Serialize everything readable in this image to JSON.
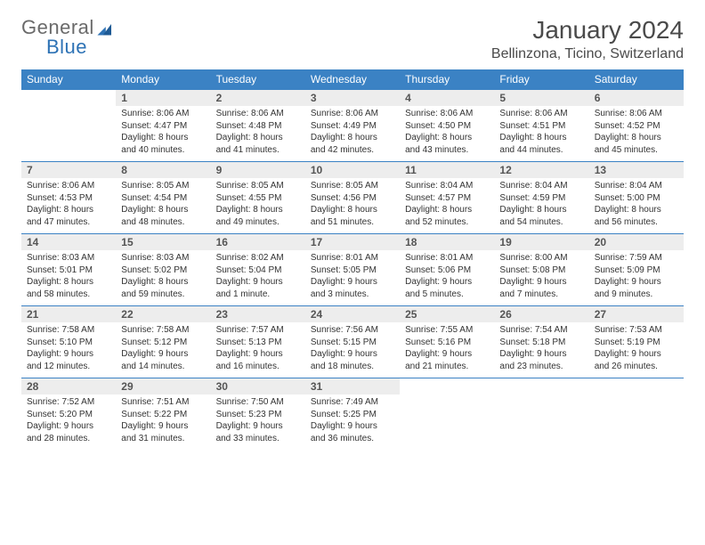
{
  "logo": {
    "general": "General",
    "blue": "Blue"
  },
  "title": "January 2024",
  "location": "Bellinzona, Ticino, Switzerland",
  "colors": {
    "header_bg": "#3b82c4",
    "header_text": "#ffffff",
    "daynum_bg": "#ededed",
    "border": "#3b82c4",
    "logo_gray": "#6a6a6a",
    "logo_blue": "#2d72b5"
  },
  "weekdays": [
    "Sunday",
    "Monday",
    "Tuesday",
    "Wednesday",
    "Thursday",
    "Friday",
    "Saturday"
  ],
  "weeks": [
    [
      null,
      {
        "n": "1",
        "sr": "Sunrise: 8:06 AM",
        "ss": "Sunset: 4:47 PM",
        "d1": "Daylight: 8 hours",
        "d2": "and 40 minutes."
      },
      {
        "n": "2",
        "sr": "Sunrise: 8:06 AM",
        "ss": "Sunset: 4:48 PM",
        "d1": "Daylight: 8 hours",
        "d2": "and 41 minutes."
      },
      {
        "n": "3",
        "sr": "Sunrise: 8:06 AM",
        "ss": "Sunset: 4:49 PM",
        "d1": "Daylight: 8 hours",
        "d2": "and 42 minutes."
      },
      {
        "n": "4",
        "sr": "Sunrise: 8:06 AM",
        "ss": "Sunset: 4:50 PM",
        "d1": "Daylight: 8 hours",
        "d2": "and 43 minutes."
      },
      {
        "n": "5",
        "sr": "Sunrise: 8:06 AM",
        "ss": "Sunset: 4:51 PM",
        "d1": "Daylight: 8 hours",
        "d2": "and 44 minutes."
      },
      {
        "n": "6",
        "sr": "Sunrise: 8:06 AM",
        "ss": "Sunset: 4:52 PM",
        "d1": "Daylight: 8 hours",
        "d2": "and 45 minutes."
      }
    ],
    [
      {
        "n": "7",
        "sr": "Sunrise: 8:06 AM",
        "ss": "Sunset: 4:53 PM",
        "d1": "Daylight: 8 hours",
        "d2": "and 47 minutes."
      },
      {
        "n": "8",
        "sr": "Sunrise: 8:05 AM",
        "ss": "Sunset: 4:54 PM",
        "d1": "Daylight: 8 hours",
        "d2": "and 48 minutes."
      },
      {
        "n": "9",
        "sr": "Sunrise: 8:05 AM",
        "ss": "Sunset: 4:55 PM",
        "d1": "Daylight: 8 hours",
        "d2": "and 49 minutes."
      },
      {
        "n": "10",
        "sr": "Sunrise: 8:05 AM",
        "ss": "Sunset: 4:56 PM",
        "d1": "Daylight: 8 hours",
        "d2": "and 51 minutes."
      },
      {
        "n": "11",
        "sr": "Sunrise: 8:04 AM",
        "ss": "Sunset: 4:57 PM",
        "d1": "Daylight: 8 hours",
        "d2": "and 52 minutes."
      },
      {
        "n": "12",
        "sr": "Sunrise: 8:04 AM",
        "ss": "Sunset: 4:59 PM",
        "d1": "Daylight: 8 hours",
        "d2": "and 54 minutes."
      },
      {
        "n": "13",
        "sr": "Sunrise: 8:04 AM",
        "ss": "Sunset: 5:00 PM",
        "d1": "Daylight: 8 hours",
        "d2": "and 56 minutes."
      }
    ],
    [
      {
        "n": "14",
        "sr": "Sunrise: 8:03 AM",
        "ss": "Sunset: 5:01 PM",
        "d1": "Daylight: 8 hours",
        "d2": "and 58 minutes."
      },
      {
        "n": "15",
        "sr": "Sunrise: 8:03 AM",
        "ss": "Sunset: 5:02 PM",
        "d1": "Daylight: 8 hours",
        "d2": "and 59 minutes."
      },
      {
        "n": "16",
        "sr": "Sunrise: 8:02 AM",
        "ss": "Sunset: 5:04 PM",
        "d1": "Daylight: 9 hours",
        "d2": "and 1 minute."
      },
      {
        "n": "17",
        "sr": "Sunrise: 8:01 AM",
        "ss": "Sunset: 5:05 PM",
        "d1": "Daylight: 9 hours",
        "d2": "and 3 minutes."
      },
      {
        "n": "18",
        "sr": "Sunrise: 8:01 AM",
        "ss": "Sunset: 5:06 PM",
        "d1": "Daylight: 9 hours",
        "d2": "and 5 minutes."
      },
      {
        "n": "19",
        "sr": "Sunrise: 8:00 AM",
        "ss": "Sunset: 5:08 PM",
        "d1": "Daylight: 9 hours",
        "d2": "and 7 minutes."
      },
      {
        "n": "20",
        "sr": "Sunrise: 7:59 AM",
        "ss": "Sunset: 5:09 PM",
        "d1": "Daylight: 9 hours",
        "d2": "and 9 minutes."
      }
    ],
    [
      {
        "n": "21",
        "sr": "Sunrise: 7:58 AM",
        "ss": "Sunset: 5:10 PM",
        "d1": "Daylight: 9 hours",
        "d2": "and 12 minutes."
      },
      {
        "n": "22",
        "sr": "Sunrise: 7:58 AM",
        "ss": "Sunset: 5:12 PM",
        "d1": "Daylight: 9 hours",
        "d2": "and 14 minutes."
      },
      {
        "n": "23",
        "sr": "Sunrise: 7:57 AM",
        "ss": "Sunset: 5:13 PM",
        "d1": "Daylight: 9 hours",
        "d2": "and 16 minutes."
      },
      {
        "n": "24",
        "sr": "Sunrise: 7:56 AM",
        "ss": "Sunset: 5:15 PM",
        "d1": "Daylight: 9 hours",
        "d2": "and 18 minutes."
      },
      {
        "n": "25",
        "sr": "Sunrise: 7:55 AM",
        "ss": "Sunset: 5:16 PM",
        "d1": "Daylight: 9 hours",
        "d2": "and 21 minutes."
      },
      {
        "n": "26",
        "sr": "Sunrise: 7:54 AM",
        "ss": "Sunset: 5:18 PM",
        "d1": "Daylight: 9 hours",
        "d2": "and 23 minutes."
      },
      {
        "n": "27",
        "sr": "Sunrise: 7:53 AM",
        "ss": "Sunset: 5:19 PM",
        "d1": "Daylight: 9 hours",
        "d2": "and 26 minutes."
      }
    ],
    [
      {
        "n": "28",
        "sr": "Sunrise: 7:52 AM",
        "ss": "Sunset: 5:20 PM",
        "d1": "Daylight: 9 hours",
        "d2": "and 28 minutes."
      },
      {
        "n": "29",
        "sr": "Sunrise: 7:51 AM",
        "ss": "Sunset: 5:22 PM",
        "d1": "Daylight: 9 hours",
        "d2": "and 31 minutes."
      },
      {
        "n": "30",
        "sr": "Sunrise: 7:50 AM",
        "ss": "Sunset: 5:23 PM",
        "d1": "Daylight: 9 hours",
        "d2": "and 33 minutes."
      },
      {
        "n": "31",
        "sr": "Sunrise: 7:49 AM",
        "ss": "Sunset: 5:25 PM",
        "d1": "Daylight: 9 hours",
        "d2": "and 36 minutes."
      },
      null,
      null,
      null
    ]
  ]
}
